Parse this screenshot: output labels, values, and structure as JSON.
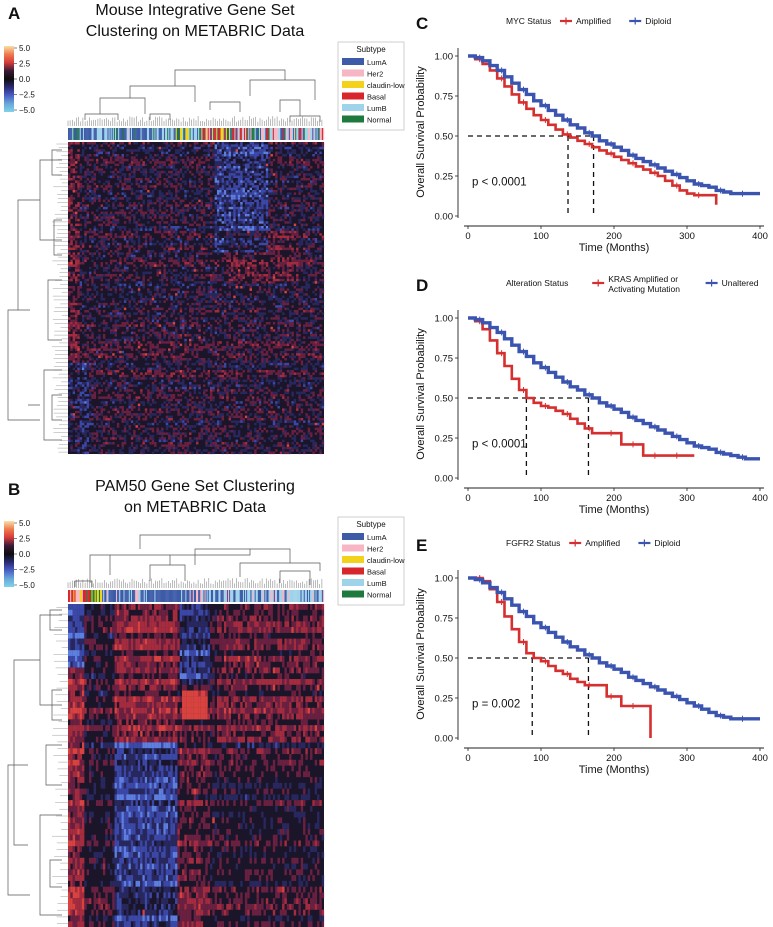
{
  "panels": {
    "a": {
      "letter": "A",
      "title_line1": "Mouse Integrative Gene Set",
      "title_line2": "Clustering on METABRIC Data"
    },
    "b": {
      "letter": "B",
      "title_line1": "PAM50 Gene Set Clustering",
      "title_line2": "on METABRIC Data"
    },
    "c": {
      "letter": "C"
    },
    "d": {
      "letter": "D"
    },
    "e": {
      "letter": "E"
    }
  },
  "scale": {
    "ticks": [
      "5.0",
      "2.5",
      "0.0",
      "−2.5",
      "−5.0"
    ],
    "colors": [
      "#f6e1a8",
      "#f07a4c",
      "#d43b3b",
      "#3a1b38",
      "#0d0d0d",
      "#2b2a74",
      "#4a5fc7",
      "#6aa8d8",
      "#7ed3e8"
    ]
  },
  "legend": {
    "title": "Subtype",
    "items": [
      {
        "label": "LumA",
        "color": "#3e5ba8"
      },
      {
        "label": "Her2",
        "color": "#f6b6c4"
      },
      {
        "label": "claudin-low",
        "color": "#f2d21b"
      },
      {
        "label": "Basal",
        "color": "#d7262c"
      },
      {
        "label": "LumB",
        "color": "#9fd3ea"
      },
      {
        "label": "Normal",
        "color": "#1d7a3c"
      }
    ]
  },
  "chart_data": [
    {
      "type": "line",
      "panel": "C",
      "legend_title": "MYC Status",
      "series": [
        {
          "name": "Amplified",
          "color": "#d62f2f",
          "x": [
            0,
            10,
            20,
            30,
            40,
            50,
            60,
            70,
            80,
            90,
            100,
            110,
            120,
            130,
            140,
            150,
            160,
            170,
            180,
            190,
            200,
            210,
            220,
            230,
            240,
            250,
            260,
            270,
            280,
            290,
            300,
            310,
            320,
            330,
            340
          ],
          "y": [
            1.0,
            0.98,
            0.95,
            0.91,
            0.86,
            0.81,
            0.76,
            0.71,
            0.67,
            0.63,
            0.6,
            0.57,
            0.54,
            0.51,
            0.49,
            0.47,
            0.45,
            0.43,
            0.41,
            0.39,
            0.37,
            0.35,
            0.33,
            0.31,
            0.29,
            0.27,
            0.25,
            0.22,
            0.19,
            0.16,
            0.14,
            0.13,
            0.13,
            0.13,
            0.07
          ]
        },
        {
          "name": "Diploid",
          "color": "#3b54b0",
          "x": [
            0,
            10,
            20,
            30,
            40,
            50,
            60,
            70,
            80,
            90,
            100,
            110,
            120,
            130,
            140,
            150,
            160,
            170,
            180,
            190,
            200,
            210,
            220,
            230,
            240,
            250,
            260,
            270,
            280,
            290,
            300,
            310,
            320,
            330,
            340,
            350,
            360,
            370,
            380,
            390,
            400
          ],
          "y": [
            1.0,
            0.99,
            0.97,
            0.94,
            0.91,
            0.87,
            0.83,
            0.79,
            0.76,
            0.72,
            0.69,
            0.66,
            0.63,
            0.6,
            0.57,
            0.55,
            0.52,
            0.5,
            0.47,
            0.45,
            0.43,
            0.41,
            0.38,
            0.36,
            0.34,
            0.32,
            0.3,
            0.28,
            0.26,
            0.24,
            0.22,
            0.2,
            0.19,
            0.18,
            0.16,
            0.15,
            0.14,
            0.14,
            0.14,
            0.14,
            0.14
          ]
        }
      ],
      "medians": [
        137,
        172
      ],
      "pvalue": "p < 0.0001",
      "xlabel": "Time (Months)",
      "ylabel": "Overall Survival Probability",
      "xlim": [
        0,
        400
      ],
      "ylim": [
        0,
        1
      ],
      "xticks": [
        "0",
        "100",
        "200",
        "300",
        "400"
      ],
      "yticks": [
        "0.00",
        "0.25",
        "0.50",
        "0.75",
        "1.00"
      ]
    },
    {
      "type": "line",
      "panel": "D",
      "legend_title": "Alteration Status",
      "series": [
        {
          "name": "KRAS Amplified or Activating Mutation",
          "color": "#d62f2f",
          "x": [
            0,
            10,
            20,
            30,
            40,
            50,
            60,
            70,
            80,
            90,
            100,
            110,
            120,
            130,
            140,
            150,
            160,
            170,
            180,
            190,
            200,
            210,
            220,
            230,
            240,
            250,
            260,
            270,
            280,
            290,
            300,
            310
          ],
          "y": [
            1.0,
            0.98,
            0.93,
            0.86,
            0.78,
            0.7,
            0.62,
            0.55,
            0.5,
            0.47,
            0.45,
            0.44,
            0.42,
            0.4,
            0.37,
            0.34,
            0.31,
            0.28,
            0.28,
            0.28,
            0.28,
            0.21,
            0.21,
            0.21,
            0.14,
            0.14,
            0.14,
            0.14,
            0.14,
            0.14,
            0.14,
            0.14
          ]
        },
        {
          "name": "Unaltered",
          "color": "#3b54b0",
          "x": [
            0,
            10,
            20,
            30,
            40,
            50,
            60,
            70,
            80,
            90,
            100,
            110,
            120,
            130,
            140,
            150,
            160,
            170,
            180,
            190,
            200,
            210,
            220,
            230,
            240,
            250,
            260,
            270,
            280,
            290,
            300,
            310,
            320,
            330,
            340,
            350,
            360,
            370,
            380,
            390,
            400
          ],
          "y": [
            1.0,
            0.99,
            0.97,
            0.94,
            0.91,
            0.87,
            0.83,
            0.79,
            0.76,
            0.72,
            0.69,
            0.66,
            0.63,
            0.6,
            0.57,
            0.55,
            0.52,
            0.5,
            0.47,
            0.45,
            0.43,
            0.41,
            0.38,
            0.36,
            0.34,
            0.32,
            0.3,
            0.28,
            0.26,
            0.24,
            0.22,
            0.2,
            0.19,
            0.18,
            0.16,
            0.15,
            0.14,
            0.13,
            0.12,
            0.12,
            0.12
          ]
        }
      ],
      "medians": [
        80,
        165
      ],
      "pvalue": "p < 0.0001",
      "xlabel": "Time (Months)",
      "ylabel": "Overall Survival Probability",
      "xlim": [
        0,
        400
      ],
      "ylim": [
        0,
        1
      ],
      "xticks": [
        "0",
        "100",
        "200",
        "300",
        "400"
      ],
      "yticks": [
        "0.00",
        "0.25",
        "0.50",
        "0.75",
        "1.00"
      ]
    },
    {
      "type": "line",
      "panel": "E",
      "legend_title": "FGFR2 Status",
      "series": [
        {
          "name": "Amplified",
          "color": "#d62f2f",
          "x": [
            0,
            10,
            20,
            30,
            40,
            50,
            60,
            70,
            80,
            90,
            100,
            110,
            120,
            130,
            140,
            150,
            160,
            170,
            180,
            190,
            200,
            210,
            220,
            230,
            240,
            250
          ],
          "y": [
            1.0,
            1.0,
            0.98,
            0.93,
            0.85,
            0.76,
            0.68,
            0.6,
            0.53,
            0.5,
            0.48,
            0.45,
            0.42,
            0.4,
            0.37,
            0.35,
            0.33,
            0.33,
            0.33,
            0.26,
            0.26,
            0.2,
            0.2,
            0.2,
            0.2,
            0.0
          ]
        },
        {
          "name": "Diploid",
          "color": "#3b54b0",
          "x": [
            0,
            10,
            20,
            30,
            40,
            50,
            60,
            70,
            80,
            90,
            100,
            110,
            120,
            130,
            140,
            150,
            160,
            170,
            180,
            190,
            200,
            210,
            220,
            230,
            240,
            250,
            260,
            270,
            280,
            290,
            300,
            310,
            320,
            330,
            340,
            350,
            360,
            370,
            380,
            390,
            400
          ],
          "y": [
            1.0,
            0.99,
            0.97,
            0.94,
            0.91,
            0.87,
            0.83,
            0.79,
            0.76,
            0.72,
            0.69,
            0.66,
            0.63,
            0.6,
            0.57,
            0.55,
            0.52,
            0.5,
            0.47,
            0.45,
            0.43,
            0.41,
            0.38,
            0.36,
            0.34,
            0.32,
            0.3,
            0.28,
            0.26,
            0.24,
            0.22,
            0.2,
            0.18,
            0.16,
            0.14,
            0.13,
            0.12,
            0.12,
            0.12,
            0.12,
            0.12
          ]
        }
      ],
      "medians": [
        88,
        165
      ],
      "pvalue": "p = 0.002",
      "xlabel": "Time (Months)",
      "ylabel": "Overall Survival Probability",
      "xlim": [
        0,
        400
      ],
      "ylim": [
        0,
        1
      ],
      "xticks": [
        "0",
        "100",
        "200",
        "300",
        "400"
      ],
      "yticks": [
        "0.00",
        "0.25",
        "0.50",
        "0.75",
        "1.00"
      ]
    }
  ]
}
